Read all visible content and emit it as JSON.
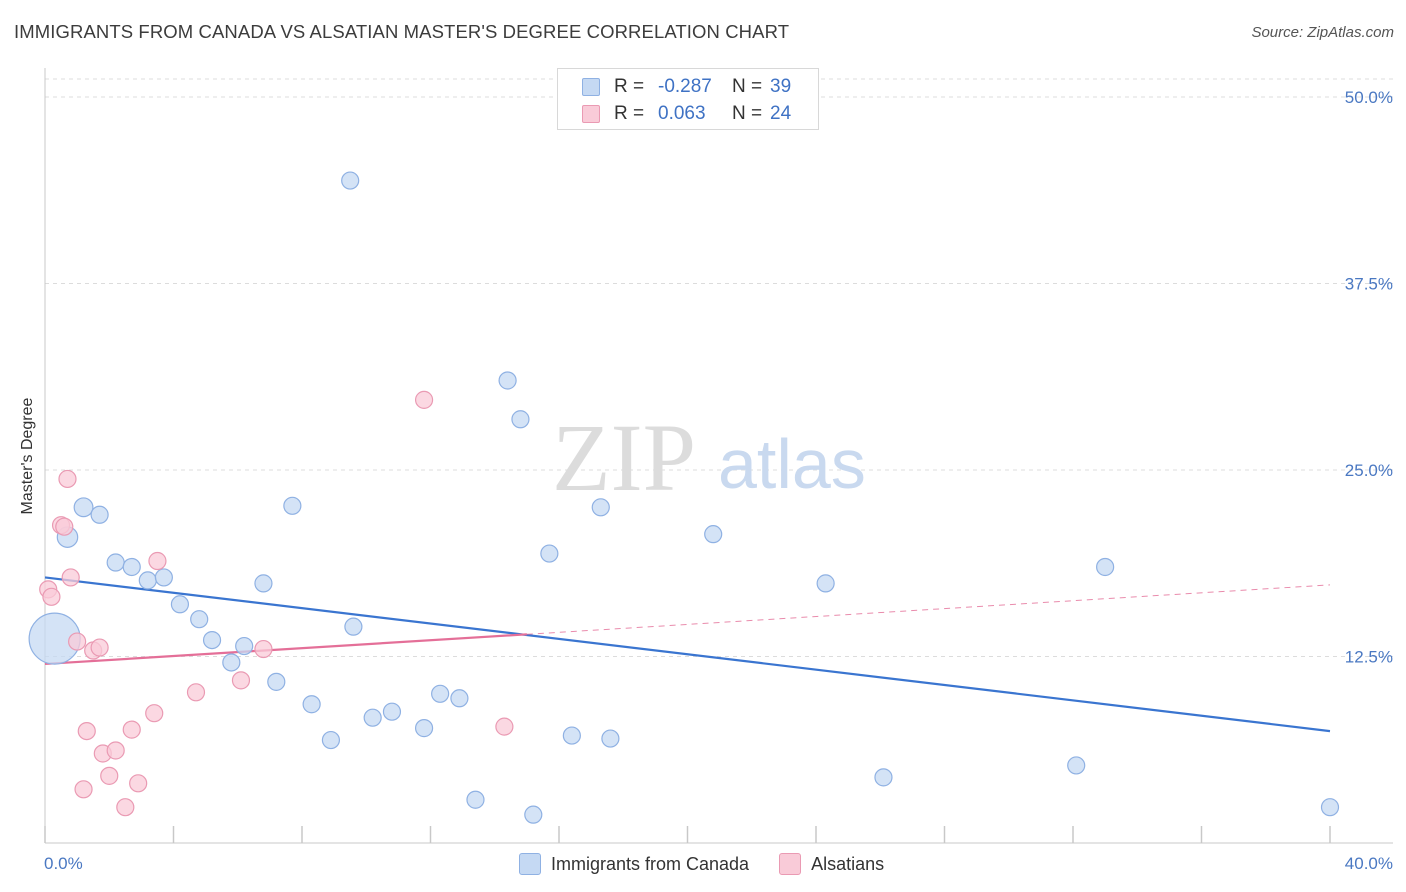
{
  "title": "IMMIGRANTS FROM CANADA VS ALSATIAN MASTER'S DEGREE CORRELATION CHART",
  "source": "Source: ZipAtlas.com",
  "watermark": {
    "zip": "ZIP",
    "atlas": "atlas"
  },
  "colors": {
    "blue_fill": "#c5d9f3",
    "blue_stroke": "#8fb1e3",
    "blue_line": "#3a75d0",
    "pink_fill": "#f9cbd8",
    "pink_stroke": "#ea9ab3",
    "pink_line": "#e46f98",
    "grid": "#dcdcdc",
    "axis_text": "#4a78c2"
  },
  "legend": {
    "rows": [
      {
        "r_label": "R =",
        "r_value": "-0.287",
        "n_label": "N =",
        "n_value": "39",
        "series": "blue"
      },
      {
        "r_label": "R =",
        "r_value": "0.063",
        "n_label": "N =",
        "n_value": "24",
        "series": "pink"
      }
    ]
  },
  "chart_data": {
    "type": "scatter",
    "title": "IMMIGRANTS FROM CANADA VS ALSATIAN MASTER'S DEGREE CORRELATION CHART",
    "xlabel": "",
    "ylabel": "Master's Degree",
    "xlim": [
      0,
      40
    ],
    "ylim": [
      0,
      50
    ],
    "x_tick_labels": [
      "0.0%",
      "40.0%"
    ],
    "y_ticks": [
      12.5,
      25.0,
      37.5,
      50.0
    ],
    "y_tick_labels": [
      "12.5%",
      "25.0%",
      "37.5%",
      "50.0%"
    ],
    "grid": true,
    "legend_position": "top-center",
    "series": [
      {
        "name": "Immigrants from Canada",
        "color": "blue",
        "r": -0.287,
        "n": 39,
        "trend": {
          "x": [
            0,
            40
          ],
          "y": [
            17.8,
            7.5
          ],
          "dashed_from": null
        },
        "points": [
          {
            "x": 0.3,
            "y": 13.7,
            "s": 3.0
          },
          {
            "x": 0.7,
            "y": 20.5,
            "s": 1.2
          },
          {
            "x": 1.2,
            "y": 22.5,
            "s": 1.1
          },
          {
            "x": 1.7,
            "y": 22.0,
            "s": 1.0
          },
          {
            "x": 2.2,
            "y": 18.8,
            "s": 1.0
          },
          {
            "x": 2.7,
            "y": 18.5,
            "s": 1.0
          },
          {
            "x": 3.2,
            "y": 17.6,
            "s": 1.0
          },
          {
            "x": 3.7,
            "y": 17.8,
            "s": 1.0
          },
          {
            "x": 4.2,
            "y": 16.0,
            "s": 1.0
          },
          {
            "x": 4.8,
            "y": 15.0,
            "s": 1.0
          },
          {
            "x": 5.2,
            "y": 13.6,
            "s": 1.0
          },
          {
            "x": 5.8,
            "y": 12.1,
            "s": 1.0
          },
          {
            "x": 6.2,
            "y": 13.2,
            "s": 1.0
          },
          {
            "x": 6.8,
            "y": 17.4,
            "s": 1.0
          },
          {
            "x": 7.2,
            "y": 10.8,
            "s": 1.0
          },
          {
            "x": 7.7,
            "y": 22.6,
            "s": 1.0
          },
          {
            "x": 8.3,
            "y": 9.3,
            "s": 1.0
          },
          {
            "x": 8.9,
            "y": 6.9,
            "s": 1.0
          },
          {
            "x": 9.5,
            "y": 44.4,
            "s": 1.0
          },
          {
            "x": 9.6,
            "y": 14.5,
            "s": 1.0
          },
          {
            "x": 10.2,
            "y": 8.4,
            "s": 1.0
          },
          {
            "x": 10.8,
            "y": 8.8,
            "s": 1.0
          },
          {
            "x": 11.8,
            "y": 7.7,
            "s": 1.0
          },
          {
            "x": 12.3,
            "y": 10.0,
            "s": 1.0
          },
          {
            "x": 12.9,
            "y": 9.7,
            "s": 1.0
          },
          {
            "x": 13.4,
            "y": 2.9,
            "s": 1.0
          },
          {
            "x": 14.4,
            "y": 31.0,
            "s": 1.0
          },
          {
            "x": 14.8,
            "y": 28.4,
            "s": 1.0
          },
          {
            "x": 15.2,
            "y": 1.9,
            "s": 1.0
          },
          {
            "x": 15.7,
            "y": 19.4,
            "s": 1.0
          },
          {
            "x": 16.4,
            "y": 7.2,
            "s": 1.0
          },
          {
            "x": 17.3,
            "y": 22.5,
            "s": 1.0
          },
          {
            "x": 17.6,
            "y": 7.0,
            "s": 1.0
          },
          {
            "x": 20.8,
            "y": 20.7,
            "s": 1.0
          },
          {
            "x": 24.3,
            "y": 17.4,
            "s": 1.0
          },
          {
            "x": 26.1,
            "y": 4.4,
            "s": 1.0
          },
          {
            "x": 32.1,
            "y": 5.2,
            "s": 1.0
          },
          {
            "x": 33.0,
            "y": 18.5,
            "s": 1.0
          },
          {
            "x": 40.0,
            "y": 2.4,
            "s": 1.0
          }
        ]
      },
      {
        "name": "Alsatians",
        "color": "pink",
        "r": 0.063,
        "n": 24,
        "trend": {
          "x": [
            0,
            40
          ],
          "y": [
            12.0,
            17.3
          ],
          "dashed_from": 15.0
        },
        "points": [
          {
            "x": 0.1,
            "y": 17.0,
            "s": 1.0
          },
          {
            "x": 0.2,
            "y": 16.5,
            "s": 1.0
          },
          {
            "x": 0.5,
            "y": 21.3,
            "s": 1.0
          },
          {
            "x": 0.6,
            "y": 21.2,
            "s": 1.0
          },
          {
            "x": 0.7,
            "y": 24.4,
            "s": 1.0
          },
          {
            "x": 0.8,
            "y": 17.8,
            "s": 1.0
          },
          {
            "x": 1.0,
            "y": 13.5,
            "s": 1.0
          },
          {
            "x": 1.2,
            "y": 3.6,
            "s": 1.0
          },
          {
            "x": 1.3,
            "y": 7.5,
            "s": 1.0
          },
          {
            "x": 1.5,
            "y": 12.9,
            "s": 1.0
          },
          {
            "x": 1.7,
            "y": 13.1,
            "s": 1.0
          },
          {
            "x": 1.8,
            "y": 6.0,
            "s": 1.0
          },
          {
            "x": 2.0,
            "y": 4.5,
            "s": 1.0
          },
          {
            "x": 2.2,
            "y": 6.2,
            "s": 1.0
          },
          {
            "x": 2.5,
            "y": 2.4,
            "s": 1.0
          },
          {
            "x": 2.7,
            "y": 7.6,
            "s": 1.0
          },
          {
            "x": 2.9,
            "y": 4.0,
            "s": 1.0
          },
          {
            "x": 3.4,
            "y": 8.7,
            "s": 1.0
          },
          {
            "x": 3.5,
            "y": 18.9,
            "s": 1.0
          },
          {
            "x": 4.7,
            "y": 10.1,
            "s": 1.0
          },
          {
            "x": 6.1,
            "y": 10.9,
            "s": 1.0
          },
          {
            "x": 6.8,
            "y": 13.0,
            "s": 1.0
          },
          {
            "x": 11.8,
            "y": 29.7,
            "s": 1.0
          },
          {
            "x": 14.3,
            "y": 7.8,
            "s": 1.0
          }
        ]
      }
    ]
  }
}
